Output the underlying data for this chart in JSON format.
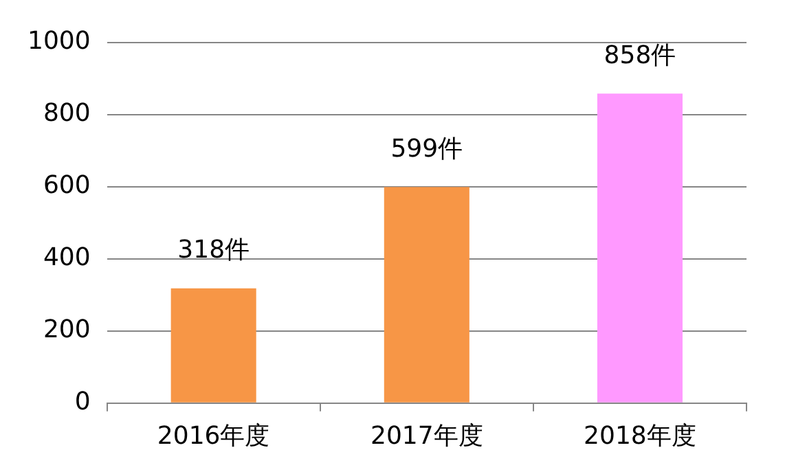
{
  "chart_data": {
    "type": "bar",
    "categories": [
      "2016年度",
      "2017年度",
      "2018年度"
    ],
    "values": [
      318,
      599,
      858
    ],
    "colors": [
      "#f79646",
      "#f79646",
      "#ff99ff"
    ],
    "value_labels": [
      "318件",
      "599件",
      "858件"
    ],
    "ylim": [
      0,
      1000
    ],
    "yticks": [
      0,
      200,
      400,
      600,
      800,
      1000
    ],
    "grid": "y",
    "legend": false
  }
}
